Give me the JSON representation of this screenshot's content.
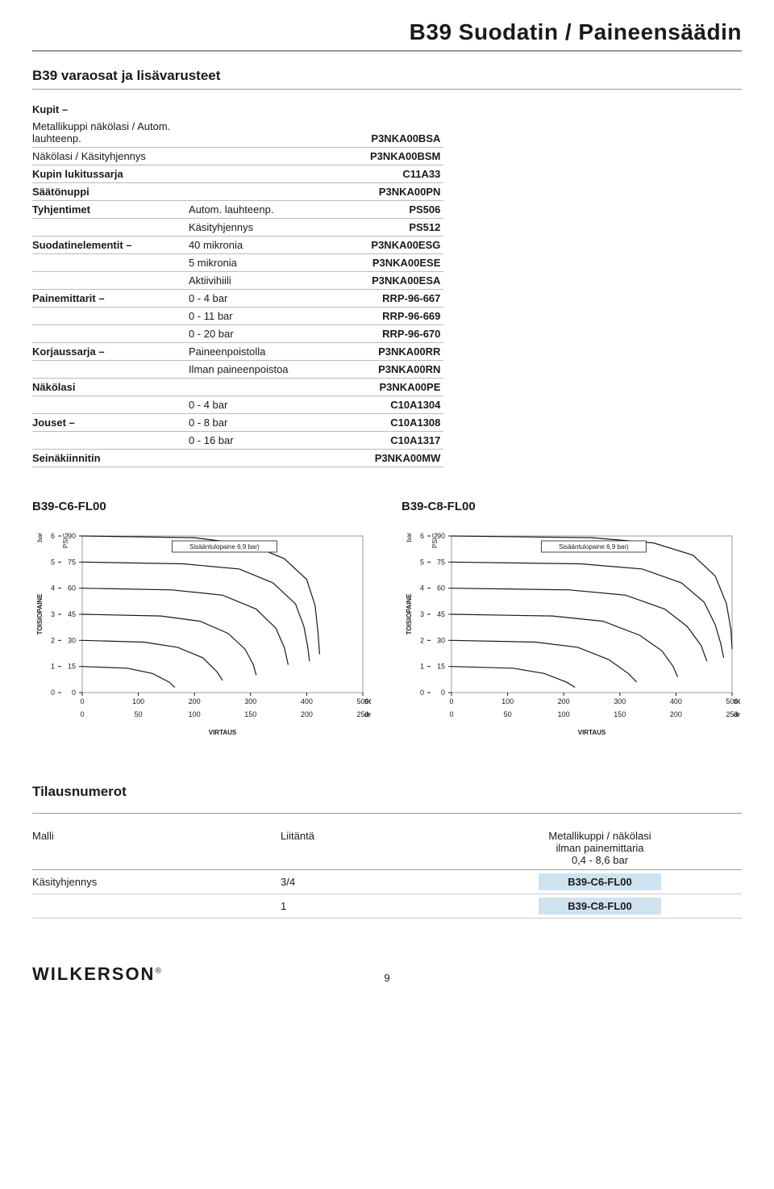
{
  "page": {
    "title": "B39 Suodatin / Paineensäädin",
    "section_title": "B39 varaosat ja lisävarusteet",
    "page_number": "9",
    "logo_text": "WILKERSON",
    "logo_reg": "®"
  },
  "parts": {
    "rows": [
      {
        "a": "Kupit –",
        "b": "",
        "c": "",
        "head": true,
        "noborder": true
      },
      {
        "a": "Metallikuppi näkölasi / Autom. lauhteenp.",
        "b": "",
        "c": "P3NKA00BSA"
      },
      {
        "a": "Näkölasi / Käsityhjennys",
        "b": "",
        "c": "P3NKA00BSM"
      },
      {
        "a": "Kupin lukitussarja",
        "b": "",
        "c": "C11A33",
        "head": true
      },
      {
        "a": "Säätönuppi",
        "b": "",
        "c": "P3NKA00PN",
        "head": true
      },
      {
        "a": "Tyhjentimet",
        "b": "Autom. lauhteenp.",
        "c": "PS506",
        "head": true
      },
      {
        "a": "",
        "b": "Käsityhjennys",
        "c": "PS512"
      },
      {
        "a": "Suodatinelementit –",
        "b": "40 mikronia",
        "c": "P3NKA00ESG",
        "head": true
      },
      {
        "a": "",
        "b": "5 mikronia",
        "c": "P3NKA00ESE"
      },
      {
        "a": "",
        "b": "Aktiivihiili",
        "c": "P3NKA00ESA"
      },
      {
        "a": "Painemittarit –",
        "b": "0 - 4 bar",
        "c": "RRP-96-667",
        "head": true
      },
      {
        "a": "",
        "b": "0 - 11 bar",
        "c": "RRP-96-669"
      },
      {
        "a": "",
        "b": "0 - 20 bar",
        "c": "RRP-96-670"
      },
      {
        "a": "Korjaussarja –",
        "b": "Paineenpoistolla",
        "c": "P3NKA00RR",
        "head": true
      },
      {
        "a": "",
        "b": "Ilman paineenpoistoa",
        "c": "P3NKA00RN"
      },
      {
        "a": "Näkölasi",
        "b": "",
        "c": "P3NKA00PE",
        "head": true
      },
      {
        "a": "",
        "b": "0 - 4 bar",
        "c": "C10A1304"
      },
      {
        "a": "Jouset –",
        "b": "0 - 8 bar",
        "c": "C10A1308",
        "head": true
      },
      {
        "a": "",
        "b": "0 - 16 bar",
        "c": "C10A1317"
      },
      {
        "a": "Seinäkiinnitin",
        "b": "",
        "c": "P3NKA00MW",
        "head": true
      }
    ]
  },
  "charts": {
    "left": {
      "title": "B39-C6-FL00",
      "inlet_label": "Sisääntulopaine 6,9 bar)",
      "y_label": "TOISIOPAINE",
      "x_label": "VIRTAUS",
      "y_bar_ticks": [
        0,
        1,
        2,
        3,
        4,
        5,
        6
      ],
      "y_psig_ticks": [
        0,
        15,
        30,
        45,
        60,
        75,
        90
      ],
      "x_scfm_ticks": [
        0,
        100,
        200,
        300,
        400,
        500
      ],
      "x_dm3_ticks": [
        0,
        50,
        100,
        150,
        200,
        250
      ],
      "x_scfm_label": "SCFM",
      "x_dm3_label": "dm³/s",
      "bar_label": "bar",
      "psig_label": "PSIG",
      "xlim": [
        0,
        500
      ],
      "ylim_psig": [
        0,
        90
      ],
      "series": [
        [
          [
            0,
            90
          ],
          [
            200,
            89
          ],
          [
            300,
            85
          ],
          [
            360,
            77
          ],
          [
            400,
            65
          ],
          [
            415,
            50
          ],
          [
            420,
            35
          ],
          [
            423,
            22
          ]
        ],
        [
          [
            0,
            75
          ],
          [
            180,
            74
          ],
          [
            280,
            71
          ],
          [
            340,
            63
          ],
          [
            380,
            51
          ],
          [
            395,
            38
          ],
          [
            402,
            26
          ],
          [
            405,
            18
          ]
        ],
        [
          [
            0,
            60
          ],
          [
            160,
            59
          ],
          [
            250,
            56
          ],
          [
            310,
            48
          ],
          [
            345,
            37
          ],
          [
            360,
            26
          ],
          [
            367,
            16
          ]
        ],
        [
          [
            0,
            45
          ],
          [
            140,
            44
          ],
          [
            210,
            41
          ],
          [
            260,
            34
          ],
          [
            290,
            25
          ],
          [
            305,
            16
          ],
          [
            310,
            10
          ]
        ],
        [
          [
            0,
            30
          ],
          [
            110,
            29
          ],
          [
            170,
            26
          ],
          [
            215,
            20
          ],
          [
            240,
            12
          ],
          [
            250,
            7
          ]
        ],
        [
          [
            0,
            15
          ],
          [
            80,
            14
          ],
          [
            125,
            11
          ],
          [
            155,
            6
          ],
          [
            165,
            3
          ]
        ]
      ],
      "colors": {
        "line": "#1a1a1a",
        "grid": "#999999",
        "text": "#1a1a1a",
        "bg": "#ffffff"
      },
      "line_width": 1.2
    },
    "right": {
      "title": "B39-C8-FL00",
      "inlet_label": "Sisääntulopaine 6,9 bar)",
      "y_label": "TOISIOPAINE",
      "x_label": "VIRTAUS",
      "y_bar_ticks": [
        0,
        1,
        2,
        3,
        4,
        5,
        6
      ],
      "y_psig_ticks": [
        0,
        15,
        30,
        45,
        60,
        75,
        90
      ],
      "x_scfm_ticks": [
        0,
        100,
        200,
        300,
        400,
        500
      ],
      "x_dm3_ticks": [
        0,
        50,
        100,
        150,
        200,
        250
      ],
      "x_scfm_label": "SCFM",
      "x_dm3_label": "dm³/s",
      "bar_label": "bar",
      "psig_label": "PSIG",
      "xlim": [
        0,
        500
      ],
      "ylim_psig": [
        0,
        90
      ],
      "series": [
        [
          [
            0,
            90
          ],
          [
            250,
            89
          ],
          [
            360,
            86
          ],
          [
            430,
            79
          ],
          [
            470,
            67
          ],
          [
            490,
            51
          ],
          [
            498,
            36
          ],
          [
            500,
            25
          ]
        ],
        [
          [
            0,
            75
          ],
          [
            230,
            74
          ],
          [
            340,
            71
          ],
          [
            410,
            63
          ],
          [
            450,
            52
          ],
          [
            470,
            39
          ],
          [
            480,
            28
          ],
          [
            485,
            20
          ]
        ],
        [
          [
            0,
            60
          ],
          [
            210,
            59
          ],
          [
            310,
            56
          ],
          [
            380,
            48
          ],
          [
            420,
            38
          ],
          [
            445,
            27
          ],
          [
            455,
            18
          ]
        ],
        [
          [
            0,
            45
          ],
          [
            180,
            44
          ],
          [
            270,
            41
          ],
          [
            335,
            33
          ],
          [
            375,
            24
          ],
          [
            395,
            15
          ],
          [
            403,
            9
          ]
        ],
        [
          [
            0,
            30
          ],
          [
            150,
            29
          ],
          [
            225,
            26
          ],
          [
            280,
            19
          ],
          [
            315,
            11
          ],
          [
            330,
            6
          ]
        ],
        [
          [
            0,
            15
          ],
          [
            110,
            14
          ],
          [
            165,
            11
          ],
          [
            205,
            6
          ],
          [
            220,
            3
          ]
        ]
      ],
      "colors": {
        "line": "#1a1a1a",
        "grid": "#999999",
        "text": "#1a1a1a",
        "bg": "#ffffff"
      },
      "line_width": 1.2
    }
  },
  "orders": {
    "title": "Tilausnumerot",
    "col_a": "Malli",
    "col_b": "Liitäntä",
    "col_c_line1": "Metallikuppi / näkölasi",
    "col_c_line2": "ilman painemittaria",
    "col_c_line3": "0,4 - 8,6 bar",
    "rows": [
      {
        "a": "Käsityhjennys",
        "b": "3/4",
        "c": "B39-C6-FL00"
      },
      {
        "a": "",
        "b": "1",
        "c": "B39-C8-FL00"
      }
    ]
  }
}
